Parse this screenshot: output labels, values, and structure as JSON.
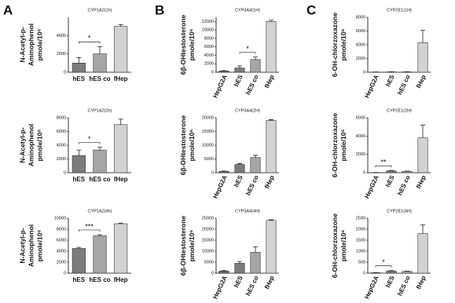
{
  "panel_labels": [
    "A",
    "B",
    "C"
  ],
  "chart_data": [
    {
      "type": "bar",
      "title": "CYP1A2(1h)",
      "ylabel": [
        "N-Acetyl-p-",
        "Aminophenol",
        "pmole/10⁶"
      ],
      "categories": [
        "hES",
        "hES co",
        "fHep"
      ],
      "values": [
        1000,
        2000,
        5000
      ],
      "errors": [
        600,
        800,
        200
      ],
      "colors": [
        "#7c7c7c",
        "#a6a6a6",
        "#d2d2d2"
      ],
      "ylim": [
        0,
        6000
      ],
      "yticks": [
        0,
        2000,
        4000
      ],
      "significance": {
        "label": "*",
        "between": [
          "hES",
          "hES co"
        ]
      }
    },
    {
      "type": "bar",
      "title": "CYP1A2(2h)",
      "ylabel": [
        "N-Acetyl-p-",
        "Aminophenol",
        "pmole/10⁶"
      ],
      "categories": [
        "hES",
        "hES co",
        "fHep"
      ],
      "values": [
        2500,
        3300,
        7000
      ],
      "errors": [
        800,
        400,
        800
      ],
      "colors": [
        "#7c7c7c",
        "#a6a6a6",
        "#d2d2d2"
      ],
      "ylim": [
        0,
        8000
      ],
      "yticks": [
        0,
        2000,
        4000,
        6000,
        8000
      ],
      "significance": {
        "label": "*",
        "between": [
          "hES",
          "hES co"
        ]
      }
    },
    {
      "type": "bar",
      "title": "CYP1A2(4h)",
      "ylabel": [
        "N-Acetyl-p-",
        "Aminophenol",
        "pmole/10⁶"
      ],
      "categories": [
        "hES",
        "hES co",
        "fHep"
      ],
      "values": [
        4500,
        6800,
        9000
      ],
      "errors": [
        200,
        200,
        100
      ],
      "colors": [
        "#7c7c7c",
        "#a6a6a6",
        "#d2d2d2"
      ],
      "ylim": [
        0,
        10000
      ],
      "yticks": [
        0,
        2000,
        4000,
        6000,
        8000,
        10000
      ],
      "significance": {
        "label": "***",
        "between": [
          "hES",
          "hES co"
        ]
      }
    },
    {
      "type": "bar",
      "title": "CYP3A4(1H)",
      "ylabel": [
        "6β-OHtestosterone",
        "pmole/10⁶"
      ],
      "categories": [
        "HepG2A",
        "hES",
        "hES co",
        "fHep"
      ],
      "values": [
        300,
        1000,
        3000,
        12000
      ],
      "errors": [
        100,
        500,
        600,
        300
      ],
      "colors": [
        "#6a6a6a",
        "#7c7c7c",
        "#a6a6a6",
        "#d2d2d2"
      ],
      "ylim": [
        0,
        13000
      ],
      "yticks": [
        0,
        2000,
        4000,
        6000,
        8000,
        10000,
        12000
      ],
      "significance": {
        "label": "*",
        "between": [
          "hES",
          "hES co"
        ]
      }
    },
    {
      "type": "bar",
      "title": "CYP3A4(2H)",
      "ylabel": [
        "6β-OHtestosterone",
        "pmole/10⁶"
      ],
      "categories": [
        "HepG2A",
        "hES",
        "hES co",
        "fHep"
      ],
      "values": [
        500,
        3000,
        5500,
        19000
      ],
      "errors": [
        100,
        300,
        800,
        300
      ],
      "colors": [
        "#6a6a6a",
        "#7c7c7c",
        "#a6a6a6",
        "#d2d2d2"
      ],
      "ylim": [
        0,
        20000
      ],
      "yticks": [
        0,
        5000,
        10000,
        15000,
        20000
      ]
    },
    {
      "type": "bar",
      "title": "CYP3A4(4H)",
      "ylabel": [
        "6β-OHtestosterone",
        "pmole/10⁶"
      ],
      "categories": [
        "HepG2A",
        "hES",
        "hES co",
        "fHep"
      ],
      "values": [
        1000,
        4500,
        9500,
        24000
      ],
      "errors": [
        200,
        800,
        2500,
        300
      ],
      "colors": [
        "#6a6a6a",
        "#7c7c7c",
        "#a6a6a6",
        "#d2d2d2"
      ],
      "ylim": [
        0,
        25000
      ],
      "yticks": [
        0,
        5000,
        10000,
        15000,
        20000,
        25000
      ]
    },
    {
      "type": "bar",
      "title": "CYP2E1(1H)",
      "ylabel": [
        "6-OH-chlorzoxazone",
        "pmole/10⁶"
      ],
      "categories": [
        "HepG2A",
        "hES",
        "hES co",
        "fHep"
      ],
      "values": [
        30,
        50,
        50,
        4300
      ],
      "errors": [
        10,
        20,
        20,
        1800
      ],
      "colors": [
        "#6a6a6a",
        "#7c7c7c",
        "#a6a6a6",
        "#d2d2d2"
      ],
      "ylim": [
        0,
        8000
      ],
      "yticks": [
        0,
        2000,
        4000,
        6000,
        8000
      ]
    },
    {
      "type": "bar",
      "title": "CYP2E1(2H)",
      "ylabel": [
        "6-OH-chlorzoxazone",
        "pmole/10⁶"
      ],
      "categories": [
        "HepG2A",
        "hES",
        "hES co",
        "fHep"
      ],
      "values": [
        20,
        200,
        150,
        3800
      ],
      "errors": [
        10,
        40,
        30,
        1400
      ],
      "colors": [
        "#6a6a6a",
        "#7c7c7c",
        "#a6a6a6",
        "#d2d2d2"
      ],
      "ylim": [
        0,
        6000
      ],
      "yticks": [
        0,
        2000,
        4000,
        6000
      ],
      "significance": {
        "label": "**",
        "between": [
          "HepG2A",
          "hES"
        ]
      }
    },
    {
      "type": "bar",
      "title": "CYP2E1(4H)",
      "ylabel": [
        "6-OH-chlorzoxazone",
        "pmole/10⁶"
      ],
      "categories": [
        "HepG2A",
        "hES",
        "hES co",
        "fHep"
      ],
      "values": [
        20,
        100,
        80,
        1800
      ],
      "errors": [
        10,
        20,
        15,
        400
      ],
      "colors": [
        "#6a6a6a",
        "#7c7c7c",
        "#a6a6a6",
        "#d2d2d2"
      ],
      "ylim": [
        0,
        2500
      ],
      "yticks": [
        0,
        500,
        1000,
        1500,
        2000,
        2500
      ],
      "significance": {
        "label": "*",
        "between": [
          "HepG2A",
          "hES"
        ]
      }
    }
  ]
}
